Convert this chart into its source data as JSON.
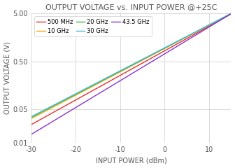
{
  "title": "OUTPUT VOLTAGE vs. INPUT POWER @+25C",
  "xlabel": "INPUT POWER (dBm)",
  "ylabel": "OUTPUT VOLTAGE (V)",
  "xmin": -30,
  "xmax": 15,
  "ymin": 0.01,
  "ymax": 5.0,
  "yticks": [
    0.01,
    0.05,
    0.5,
    5.0
  ],
  "ytick_labels": [
    "0.01",
    "0.05",
    "0.50",
    "5.00"
  ],
  "xticks": [
    -30,
    -20,
    -10,
    0,
    10
  ],
  "series": [
    {
      "label": "500 MHz",
      "color": "#e83030",
      "y_at_xmin": 0.024,
      "y_at_xmax": 4.85
    },
    {
      "label": "10 GHz",
      "color": "#f0a800",
      "y_at_xmin": 0.032,
      "y_at_xmax": 4.95
    },
    {
      "label": "20 GHz",
      "color": "#33bb44",
      "y_at_xmin": 0.034,
      "y_at_xmax": 4.97
    },
    {
      "label": "30 GHz",
      "color": "#44bbdd",
      "y_at_xmin": 0.035,
      "y_at_xmax": 4.98
    },
    {
      "label": "43.5 GHz",
      "color": "#8833cc",
      "y_at_xmin": 0.015,
      "y_at_xmax": 4.92
    }
  ],
  "background_color": "#ffffff",
  "grid_color": "#cccccc",
  "legend_cols": 3
}
